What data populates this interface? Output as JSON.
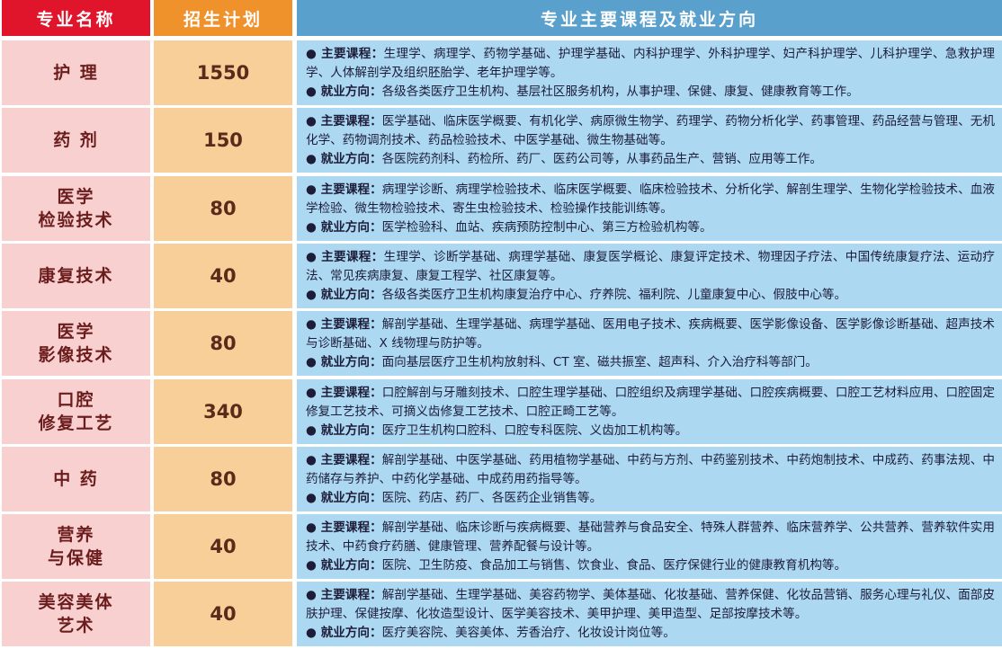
{
  "headers": {
    "name": "专业名称",
    "plan": "招生计划",
    "courses": "专业主要课程及就业方向"
  },
  "labels": {
    "courses": "● 主要课程：",
    "career": "● 就业方向："
  },
  "colors": {
    "header_name": "#e0142a",
    "header_plan": "#ef922c",
    "header_courses": "#5aa0cc",
    "cell_name": "#f9d0d0",
    "cell_plan": "#f8cf98",
    "cell_courses": "#acd8f2"
  },
  "rows": [
    {
      "name": "护 理",
      "plan": "1550",
      "courses": "生理学、病理学、药物学基础、护理学基础、内科护理学、外科护理学、妇产科护理学、儿科护理学、急救护理学、人体解剖学及组织胚胎学、老年护理学等。",
      "career": "各级各类医疗卫生机构、基层社区服务机构，从事护理、保健、康复、健康教育等工作。"
    },
    {
      "name": "药 剂",
      "plan": "150",
      "courses": "医学基础、临床医学概要、有机化学、病原微生物学、药理学、药物分析化学、药事管理、药品经营与管理、无机化学、药物调剂技术、药品检验技术、中医学基础、微生物基础等。",
      "career": "各医院药剂科、药检所、药厂、医药公司等，从事药品生产、营销、应用等工作。"
    },
    {
      "name": "医学\n检验技术",
      "plan": "80",
      "courses": "病理学诊断、病理学检验技术、临床医学概要、临床检验技术、分析化学、解剖生理学、生物化学检验技术、血液学检验、微生物检验技术、寄生虫检验技术、检验操作技能训练等。",
      "career": "医学检验科、血站、疾病预防控制中心、第三方检验机构等。"
    },
    {
      "name": "康复技术",
      "plan": "40",
      "courses": "生理学、诊断学基础、病理学基础、康复医学概论、康复评定技术、物理因子疗法、中国传统康复疗法、运动疗法、常见疾病康复、康复工程学、社区康复等。",
      "career": "各级各类医疗卫生机构康复治疗中心、疗养院、福利院、儿童康复中心、假肢中心等。"
    },
    {
      "name": "医学\n影像技术",
      "plan": "80",
      "courses": "解剖学基础、生理学基础、病理学基础、医用电子技术、疾病概要、医学影像设备、医学影像诊断基础、超声技术与诊断基础、X 线物理与防护等。",
      "career": "面向基层医疗卫生机构放射科、CT 室、磁共振室、超声科、介入治疗科等部门。"
    },
    {
      "name": "口腔\n修复工艺",
      "plan": "340",
      "courses": "口腔解剖与牙雕刻技术、口腔生理学基础、口腔组织及病理学基础、口腔疾病概要、口腔工艺材料应用、口腔固定修复工艺技术、可摘义齿修复工艺技术、口腔正畸工艺等。",
      "career": "医疗卫生机构口腔科、口腔专科医院、义齿加工机构等。"
    },
    {
      "name": "中 药",
      "plan": "80",
      "courses": "解剖学基础、中医学基础、药用植物学基础、中药与方剂、中药鉴别技术、中药炮制技术、中成药、药事法规、中药储存与养护、中药化学基础、中成药用药指导等。",
      "career": "医院、药店、药厂、各医药企业销售等。"
    },
    {
      "name": "营养\n与保健",
      "plan": "40",
      "courses": "解剖学基础、临床诊断与疾病概要、基础营养与食品安全、特殊人群营养、临床营养学、公共营养、营养软件实用技术、中药食疗药膳、健康管理、营养配餐与设计等。",
      "career": "医院、卫生防疫、食品加工与销售、饮食业、食品、医疗保健行业的健康教育机构等。"
    },
    {
      "name": "美容美体\n艺术",
      "plan": "40",
      "courses": "解剖学基础、生理学基础、美容药物学、美体基础、化妆基础、营养保健、化妆品营销、服务心理与礼仪、面部皮肤护理、保健按摩、化妆造型设计、医学美容技术、美甲护理、美甲造型、足部按摩技术等。",
      "career": "医疗美容院、美容美体、芳香治疗、化妆设计岗位等。"
    }
  ]
}
